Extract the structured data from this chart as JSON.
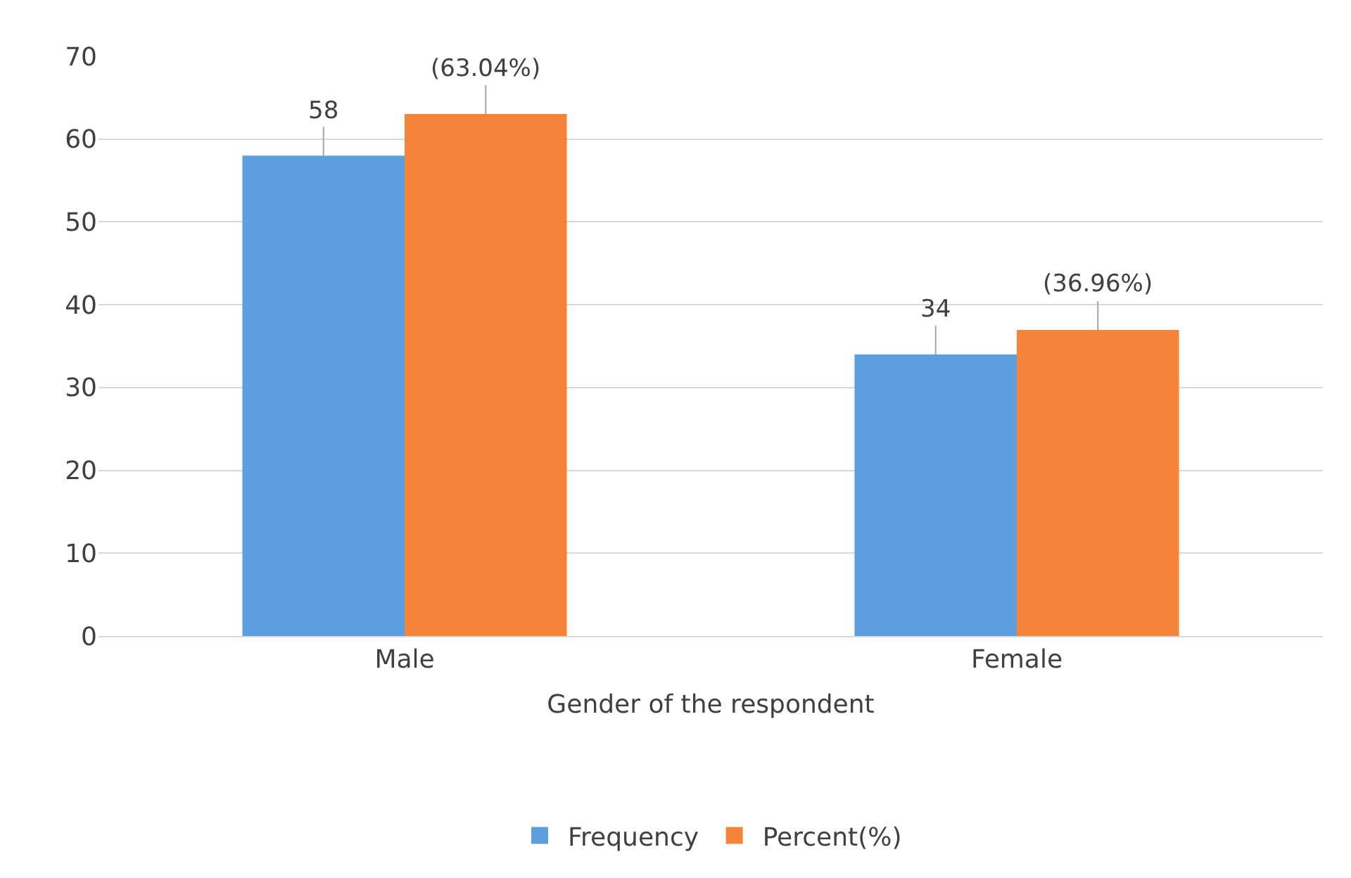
{
  "chart_data": {
    "type": "bar",
    "xlabel": "Gender of the respondent",
    "categories": [
      "Male",
      "Female"
    ],
    "series": [
      {
        "name": "Frequency",
        "color": "#5b9fe0",
        "values": [
          58,
          34
        ],
        "value_labels": [
          "58",
          "34"
        ]
      },
      {
        "name": "Percent(%)",
        "color": "#f5843a",
        "values": [
          63.04,
          36.96
        ],
        "value_labels": [
          "(63.04%)",
          "(36.96%)"
        ]
      }
    ],
    "ylim": [
      0,
      70
    ],
    "yticks": [
      0,
      10,
      20,
      30,
      40,
      50,
      60,
      70
    ],
    "grid": "y",
    "legend": "bottom"
  }
}
